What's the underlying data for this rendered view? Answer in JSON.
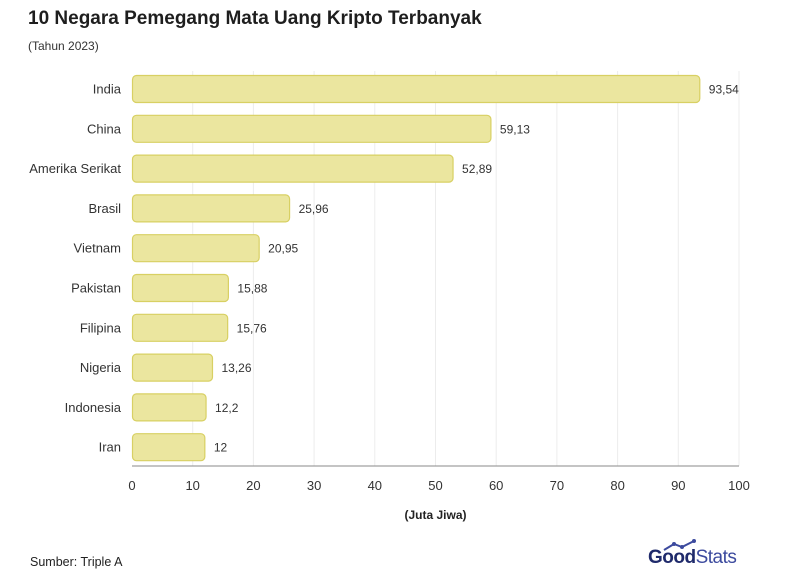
{
  "title": "10 Negara Pemegang Mata Uang Kripto Terbanyak",
  "subtitle": "(Tahun 2023)",
  "source": "Sumber: Triple A",
  "logo": {
    "part1": "Good",
    "part2": "Stats"
  },
  "colors": {
    "bar_fill": "#ebe69f",
    "bar_stroke": "#d8d063",
    "grid": "#ececec",
    "axis": "#8a8a8a"
  },
  "chart_data": {
    "type": "bar",
    "orientation": "horizontal",
    "categories": [
      "India",
      "China",
      "Amerika Serikat",
      "Brasil",
      "Vietnam",
      "Pakistan",
      "Filipina",
      "Nigeria",
      "Indonesia",
      "Iran"
    ],
    "values": [
      93.54,
      59.13,
      52.89,
      25.96,
      20.95,
      15.88,
      15.76,
      13.26,
      12.2,
      12
    ],
    "value_labels": [
      "93,54",
      "59,13",
      "52,89",
      "25,96",
      "20,95",
      "15,88",
      "15,76",
      "13,26",
      "12,2",
      "12"
    ],
    "xlabel": "(Juta Jiwa)",
    "xlim": [
      0,
      100
    ],
    "xticks": [
      0,
      10,
      20,
      30,
      40,
      50,
      60,
      70,
      80,
      90,
      100
    ],
    "grid": true
  }
}
